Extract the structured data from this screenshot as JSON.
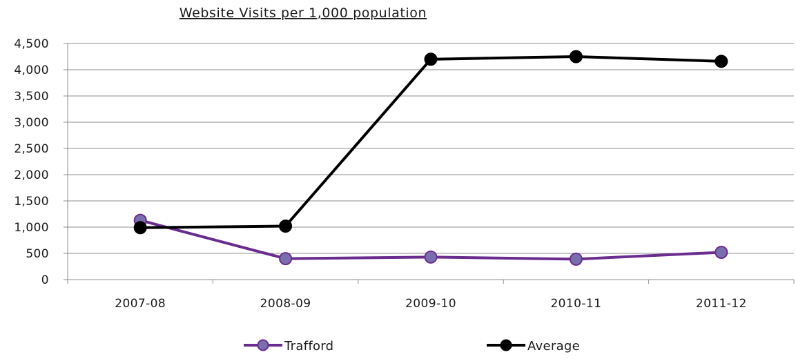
{
  "chart_data": {
    "type": "line",
    "title": "Website Visits per 1,000 population",
    "xlabel": "",
    "ylabel": "",
    "categories": [
      "2007-08",
      "2008-09",
      "2009-10",
      "2010-11",
      "2011-12"
    ],
    "ylim": [
      0,
      4500
    ],
    "yticks": [
      0,
      500,
      1000,
      1500,
      2000,
      2500,
      3000,
      3500,
      4000,
      4500
    ],
    "ytick_labels": [
      "0",
      "500",
      "1,000",
      "1,500",
      "2,000",
      "2,500",
      "3,000",
      "3,500",
      "4,000",
      "4,500"
    ],
    "grid": true,
    "legend_position": "bottom",
    "series": [
      {
        "name": "Trafford",
        "values": [
          1130,
          400,
          430,
          390,
          520
        ],
        "color": "#6a2c8e",
        "marker_color": "#7a6fae"
      },
      {
        "name": "Average",
        "values": [
          990,
          1020,
          4200,
          4250,
          4160
        ],
        "color": "#000000",
        "marker_color": "#000000"
      }
    ]
  }
}
